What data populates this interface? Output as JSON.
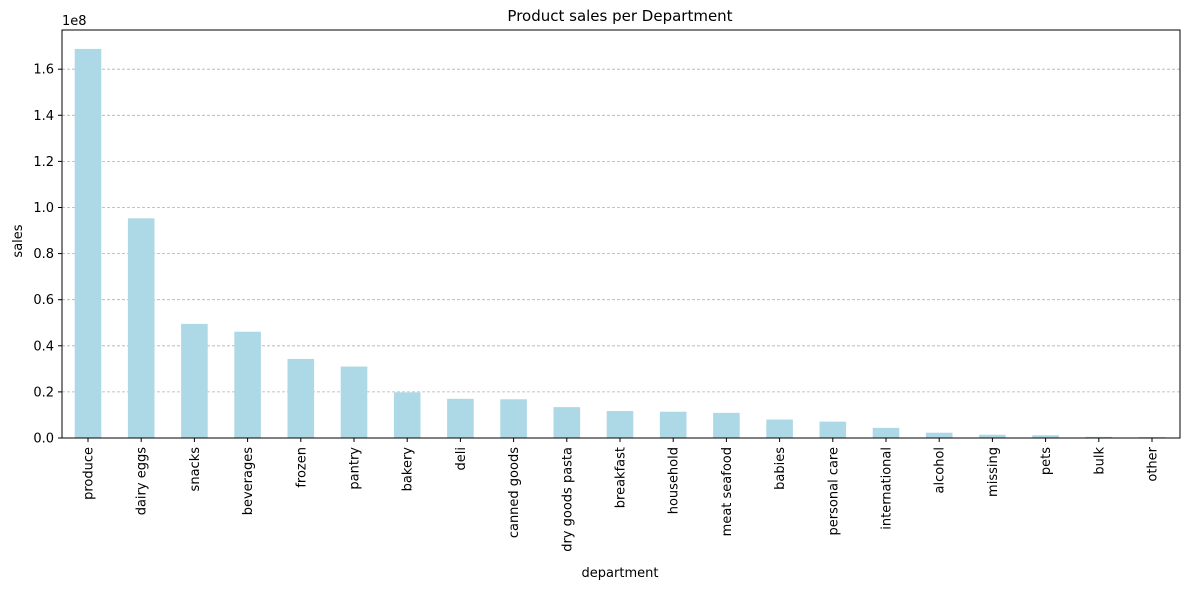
{
  "chart_data": {
    "type": "bar",
    "title": "Product sales per Department",
    "xlabel": "department",
    "ylabel": "sales",
    "y_multiplier_label": "1e8",
    "y_multiplier": 100000000,
    "ylim": [
      0,
      1.77
    ],
    "yticks": [
      0.0,
      0.2,
      0.4,
      0.6,
      0.8,
      1.0,
      1.2,
      1.4,
      1.6
    ],
    "ytick_labels": [
      "0.0",
      "0.2",
      "0.4",
      "0.6",
      "0.8",
      "1.0",
      "1.2",
      "1.4",
      "1.6"
    ],
    "grid": "y-dashed",
    "bar_color": "#add8e6",
    "grid_color": "#b0b0b0",
    "categories": [
      "produce",
      "dairy eggs",
      "snacks",
      "beverages",
      "frozen",
      "pantry",
      "bakery",
      "deli",
      "canned goods",
      "dry goods pasta",
      "breakfast",
      "household",
      "meat seafood",
      "babies",
      "personal care",
      "international",
      "alcohol",
      "missing",
      "pets",
      "bulk",
      "other"
    ],
    "values": [
      1.688,
      0.953,
      0.495,
      0.461,
      0.343,
      0.31,
      0.198,
      0.17,
      0.168,
      0.134,
      0.117,
      0.114,
      0.109,
      0.08,
      0.071,
      0.044,
      0.023,
      0.014,
      0.012,
      0.005,
      0.004
    ]
  }
}
